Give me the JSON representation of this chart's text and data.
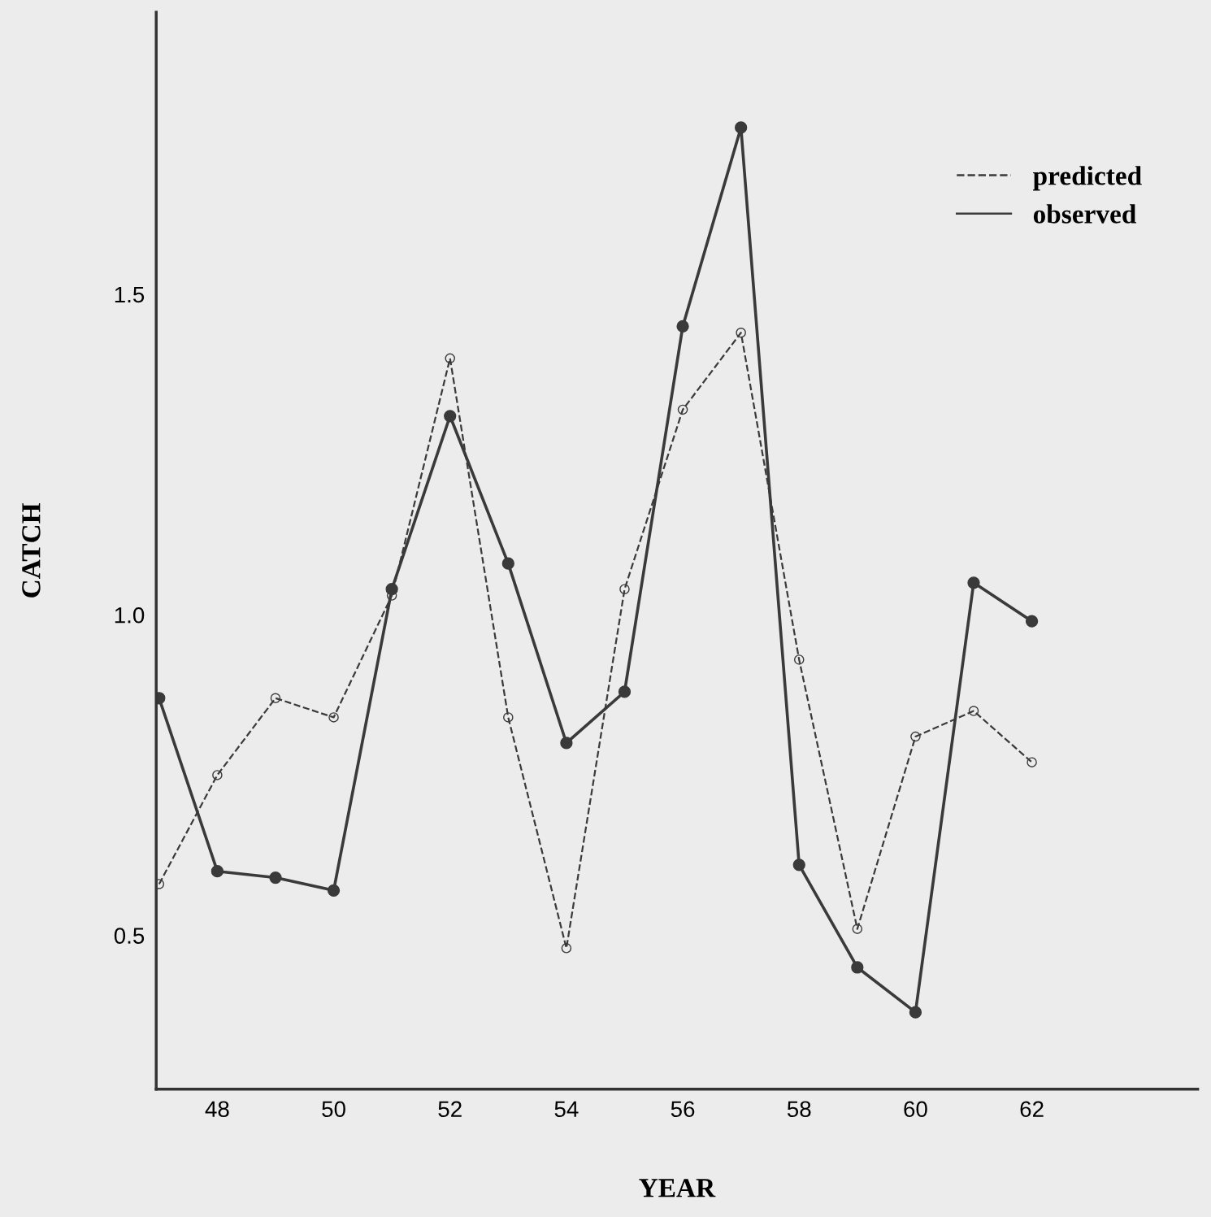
{
  "chart_data": {
    "type": "line",
    "xlabel": "YEAR",
    "ylabel": "CATCH",
    "x": [
      47,
      48,
      49,
      50,
      51,
      52,
      53,
      54,
      55,
      56,
      57,
      58,
      59,
      60,
      61,
      62
    ],
    "series": [
      {
        "name": "predicted",
        "color": "#3a3a3a",
        "line_style": "dashed",
        "values": [
          0.58,
          0.75,
          0.87,
          0.84,
          1.03,
          1.4,
          0.84,
          0.48,
          1.04,
          1.32,
          1.44,
          0.93,
          0.51,
          0.81,
          0.85,
          0.77
        ]
      },
      {
        "name": "observed",
        "color": "#3a3a3a",
        "line_style": "solid",
        "values": [
          0.87,
          0.6,
          0.59,
          0.57,
          1.04,
          1.31,
          1.08,
          0.8,
          0.88,
          1.45,
          1.76,
          0.61,
          0.45,
          0.38,
          1.05,
          0.99
        ]
      }
    ],
    "marker": "circle",
    "xlim": [
      46.95,
      64.85
    ],
    "ylim": [
      0.26,
      1.94
    ],
    "xticks": [
      48,
      50,
      52,
      54,
      56,
      58,
      60,
      62
    ],
    "yticks": [
      {
        "value": 0.5,
        "label": "0.5"
      },
      {
        "value": 1.0,
        "label": "1.0"
      },
      {
        "value": 1.5,
        "label": "1.5"
      }
    ],
    "grid": false,
    "legend": "top right"
  }
}
